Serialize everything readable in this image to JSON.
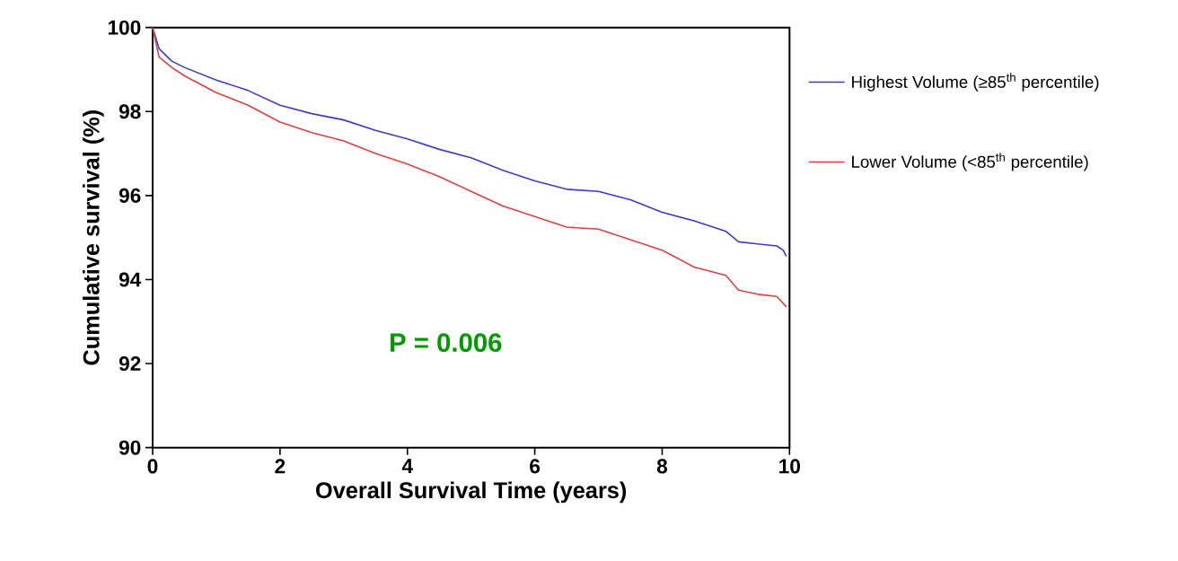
{
  "chart_data": {
    "type": "line",
    "xlabel": "Overall Survival Time (years)",
    "ylabel": "Cumulative survival (%)",
    "xlim": [
      0,
      10
    ],
    "ylim": [
      90,
      100
    ],
    "xticks": [
      0,
      2,
      4,
      6,
      8,
      10
    ],
    "yticks": [
      90,
      92,
      94,
      96,
      98,
      100
    ],
    "legend": "right",
    "marker": "none",
    "line_style": "solid",
    "grid": false,
    "annotations": [
      "P = 0.006"
    ],
    "series": [
      {
        "name": "Highest Volume (≥85$^{th}$ percentile)",
        "color": "#3b3bd0",
        "x": [
          0,
          0.1,
          0.3,
          0.5,
          1,
          1.5,
          2,
          2.5,
          3,
          3.5,
          4,
          4.5,
          5,
          5.5,
          6,
          6.5,
          7,
          7.5,
          8,
          8.5,
          9,
          9.2,
          9.5,
          9.8,
          9.9,
          9.95
        ],
        "values": [
          100,
          99.5,
          99.2,
          99.05,
          98.75,
          98.5,
          98.15,
          97.95,
          97.8,
          97.55,
          97.35,
          97.1,
          96.9,
          96.6,
          96.35,
          96.15,
          96.1,
          95.9,
          95.6,
          95.4,
          95.15,
          94.9,
          94.85,
          94.8,
          94.7,
          94.55
        ]
      },
      {
        "name": "Lower Volume (<85$^{th}$ percentile)",
        "color": "#e04040",
        "x": [
          0,
          0.1,
          0.3,
          0.5,
          1,
          1.5,
          2,
          2.5,
          3,
          3.5,
          4,
          4.5,
          5,
          5.5,
          6,
          6.5,
          7,
          7.5,
          8,
          8.5,
          9,
          9.2,
          9.5,
          9.8,
          9.95
        ],
        "values": [
          100,
          99.3,
          99.05,
          98.85,
          98.45,
          98.15,
          97.75,
          97.5,
          97.3,
          97.0,
          96.75,
          96.45,
          96.1,
          95.75,
          95.5,
          95.25,
          95.2,
          94.95,
          94.7,
          94.3,
          94.1,
          93.75,
          93.65,
          93.6,
          93.35
        ]
      }
    ]
  }
}
